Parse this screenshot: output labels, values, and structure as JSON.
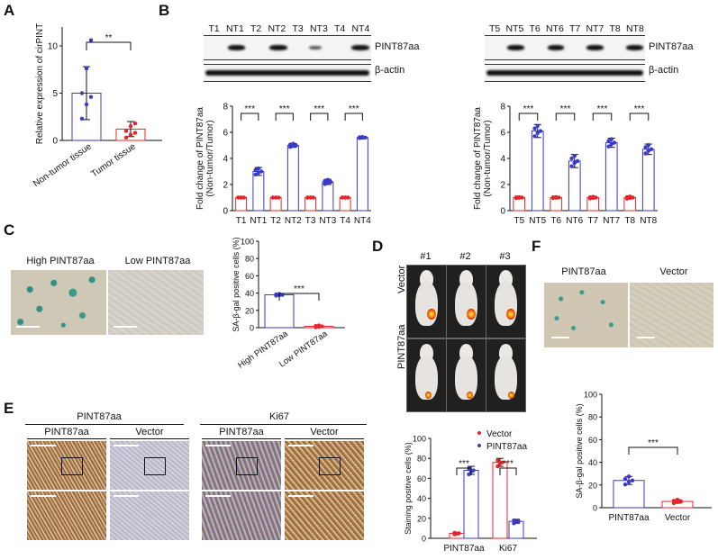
{
  "panels": {
    "A": "A",
    "B": "B",
    "C": "C",
    "D": "D",
    "E": "E",
    "F": "F"
  },
  "marker": "PINT87aa",
  "beta_actin": "β-actin",
  "blot1_lanes": [
    "T1",
    "NT1",
    "T2",
    "NT2",
    "T3",
    "NT3",
    "T4",
    "NT4"
  ],
  "blot2_lanes": [
    "T5",
    "NT5",
    "T6",
    "NT6",
    "T7",
    "NT7",
    "T8",
    "NT8"
  ],
  "panelC": {
    "high": "High PINT87aa",
    "low": "Low PINT87aa"
  },
  "panelD": {
    "cols": [
      "#1",
      "#2",
      "#3"
    ],
    "rows": [
      "Vector",
      "PINT87aa"
    ]
  },
  "panelE": {
    "group1": "PINT87aa",
    "group2": "Ki67",
    "sub": [
      "PINT87aa",
      "Vector",
      "PINT87aa",
      "Vector"
    ]
  },
  "panelF": {
    "left": "PINT87aa",
    "right": "Vector"
  },
  "colors": {
    "red": "#e8242a",
    "blue": "#3a3ac8",
    "dark": "#111111"
  },
  "chart_data": [
    {
      "id": "A",
      "type": "bar",
      "categories": [
        "Non-tumor tissue",
        "Tumor tissue"
      ],
      "values": [
        5.0,
        1.2
      ],
      "errors": [
        2.8,
        0.8
      ],
      "points": [
        [
          2.3,
          3.8,
          4.6,
          5.0,
          7.6,
          10.6
        ],
        [
          0.3,
          0.6,
          0.8,
          1.0,
          1.5,
          1.8
        ]
      ],
      "colors": [
        "blue",
        "red"
      ],
      "ylabel": "Relative expression of cirPINT",
      "ylim": [
        0,
        12
      ],
      "yticks": [
        0,
        5,
        10
      ],
      "sig": "**"
    },
    {
      "id": "B1",
      "type": "bar",
      "categories": [
        "T1",
        "NT1",
        "T2",
        "NT2",
        "T3",
        "NT3",
        "T4",
        "NT4"
      ],
      "values": [
        1.0,
        3.0,
        1.0,
        5.0,
        1.0,
        2.2,
        1.0,
        5.6
      ],
      "errors": [
        0,
        0.3,
        0,
        0.15,
        0,
        0.2,
        0,
        0.05
      ],
      "ylabel": "Fold change of PINT87aa\n(Non-tumor/Tumor)",
      "ylim": [
        0,
        8
      ],
      "yticks": [
        0,
        2,
        4,
        6,
        8
      ],
      "sig": [
        "***",
        "***",
        "***",
        "***"
      ]
    },
    {
      "id": "B2",
      "type": "bar",
      "categories": [
        "T5",
        "NT5",
        "T6",
        "NT6",
        "T7",
        "NT7",
        "T8",
        "NT8"
      ],
      "values": [
        1.0,
        6.1,
        1.0,
        3.8,
        1.0,
        5.2,
        1.0,
        4.7
      ],
      "errors": [
        0.05,
        0.5,
        0.05,
        0.5,
        0.08,
        0.35,
        0.1,
        0.4
      ],
      "ylabel": "Fold change of PINT87aa\n(Non-tumor/Tumor)",
      "ylim": [
        0,
        8
      ],
      "yticks": [
        0,
        2,
        4,
        6,
        8
      ],
      "sig": [
        "***",
        "***",
        "***",
        "***"
      ]
    },
    {
      "id": "C",
      "type": "bar",
      "categories": [
        "High PINT87aa",
        "Low PINT87aa"
      ],
      "values": [
        38,
        1.5
      ],
      "errors": [
        1.5,
        0.6
      ],
      "colors": [
        "blue",
        "red"
      ],
      "ylabel": "SA-β-gal positive cells (%)",
      "ylim": [
        0,
        100
      ],
      "yticks": [
        0,
        20,
        40,
        60,
        80,
        100
      ],
      "sig": "***"
    },
    {
      "id": "D",
      "type": "bar",
      "categories": [
        "PINT87aa",
        "Ki67"
      ],
      "series": [
        {
          "name": "Vector",
          "values": [
            5,
            76
          ],
          "errors": [
            1,
            4
          ]
        },
        {
          "name": "PINT87aa",
          "values": [
            68,
            17
          ],
          "errors": [
            4,
            2
          ]
        }
      ],
      "ylabel": "Staining positive cells (%)",
      "ylim": [
        0,
        100
      ],
      "yticks": [
        0,
        20,
        40,
        60,
        80,
        100
      ],
      "sig": [
        "***",
        "***"
      ]
    },
    {
      "id": "F",
      "type": "bar",
      "categories": [
        "PINT87aa",
        "Vector"
      ],
      "values": [
        24,
        5.5
      ],
      "errors": [
        3.5,
        1.5
      ],
      "colors": [
        "blue",
        "red"
      ],
      "ylabel": "SA-β-gal positive cells (%)",
      "ylim": [
        0,
        100
      ],
      "yticks": [
        0,
        20,
        40,
        60,
        80,
        100
      ],
      "sig": "***"
    }
  ]
}
